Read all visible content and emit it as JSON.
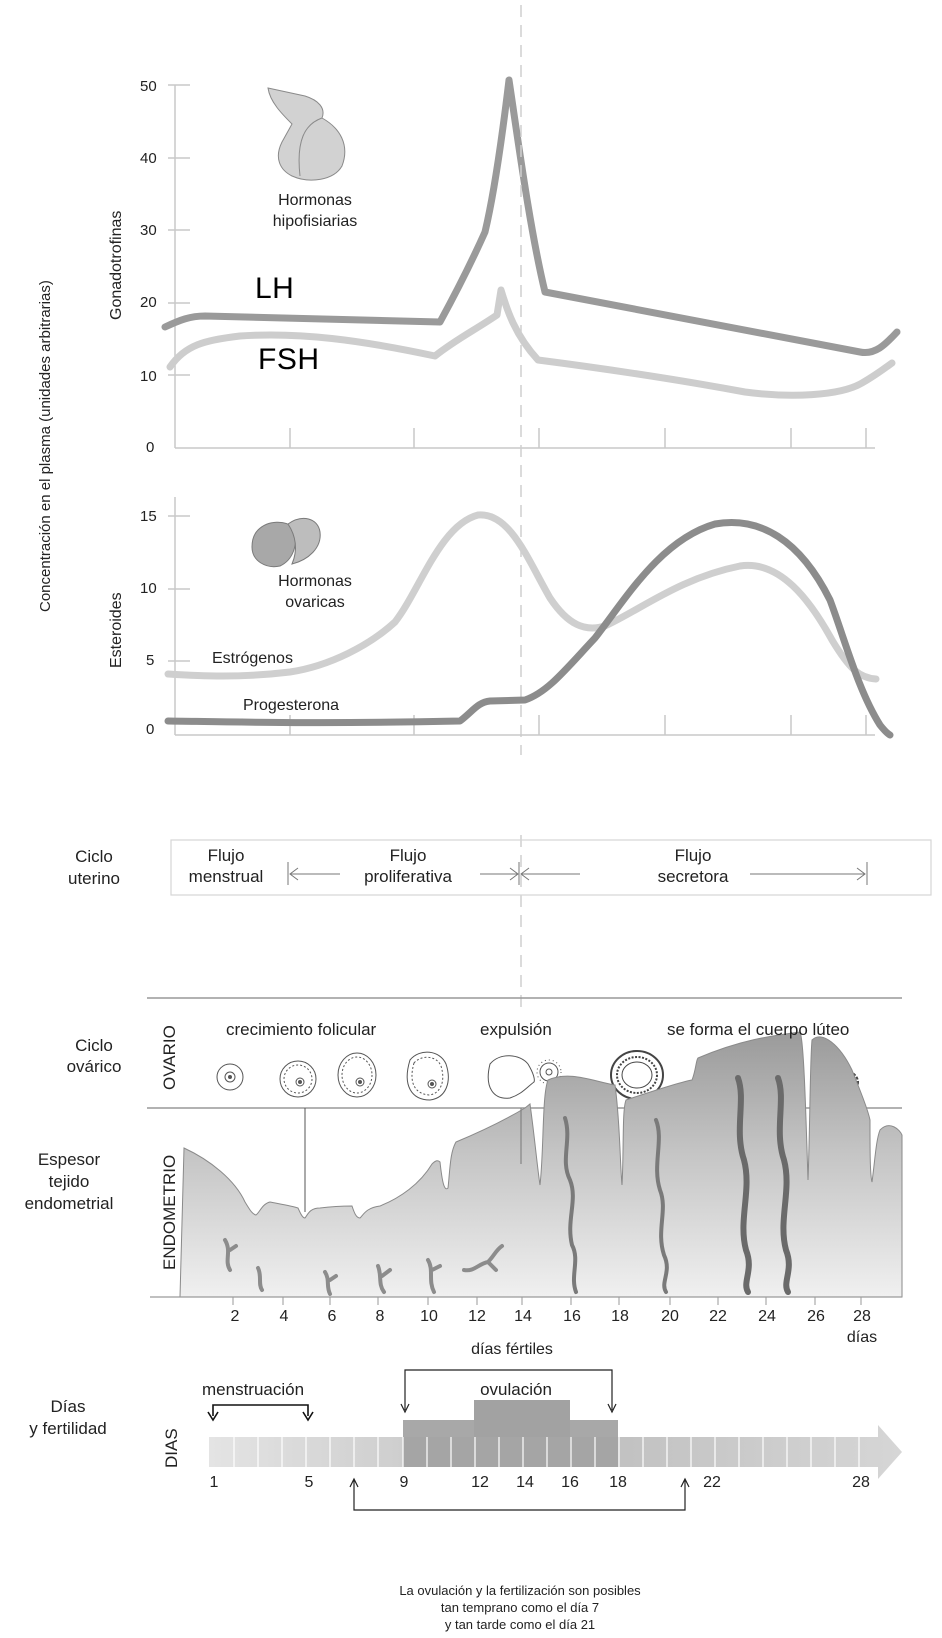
{
  "y_axis_main": "Concentración en el plasma (unidades arbitrarias)",
  "gonad": {
    "axis_label": "Gonadotrofinas",
    "ticks": [
      "50",
      "40",
      "30",
      "20",
      "10",
      "0"
    ],
    "gland_label_line1": "Hormonas",
    "gland_label_line2": "hipofisiarias",
    "lh_label": "LH",
    "fsh_label": "FSH"
  },
  "steroids": {
    "axis_label": "Esteroides",
    "ticks": [
      "15",
      "10",
      "5",
      "0"
    ],
    "gland_label_line1": "Hormonas",
    "gland_label_line2": "ovaricas",
    "estrogen_label": "Estrógenos",
    "progesterone_label": "Progesterona"
  },
  "uterine": {
    "title_line1": "Ciclo",
    "title_line2": "uterino",
    "phases": [
      {
        "line1": "Flujo",
        "line2": "menstrual"
      },
      {
        "line1": "Flujo",
        "line2": "proliferativa"
      },
      {
        "line1": "Flujo",
        "line2": "secretora"
      }
    ]
  },
  "ovarian": {
    "title_line1": "Ciclo",
    "title_line2": "ovárico",
    "vertical_label": "OVARIO",
    "stage_growth": "crecimiento folicular",
    "stage_expulsion": "expulsión",
    "stage_luteum": "se forma el cuerpo lúteo"
  },
  "endometrium": {
    "title_line1": "Espesor",
    "title_line2": "tejido",
    "title_line3": "endometrial",
    "vertical_label": "ENDOMETRIO",
    "day_ticks": [
      "2",
      "4",
      "6",
      "8",
      "10",
      "12",
      "14",
      "16",
      "18",
      "20",
      "22",
      "24",
      "26",
      "28"
    ],
    "days_unit": "días"
  },
  "fertility": {
    "title_line1": "Días",
    "title_line2": "y fertilidad",
    "vertical_label": "DIAS",
    "fertile_days_label": "días fértiles",
    "menstruation_label": "menstruación",
    "ovulation_label": "ovulación",
    "day_labels": [
      "1",
      "5",
      "9",
      "12",
      "14",
      "16",
      "18",
      "22",
      "28"
    ],
    "note_line1": "La ovulación y la fertilización son posibles",
    "note_line2": "tan temprano como el día 7",
    "note_line3": "y tan tarde como el día 21"
  },
  "colors": {
    "lh": "#9a9a9a",
    "fsh": "#cdcdcd",
    "estrogen": "#cfcfcf",
    "progesterone": "#8c8c8c",
    "tissue": "#c8c8c8",
    "axis": "#bdbdbd"
  }
}
